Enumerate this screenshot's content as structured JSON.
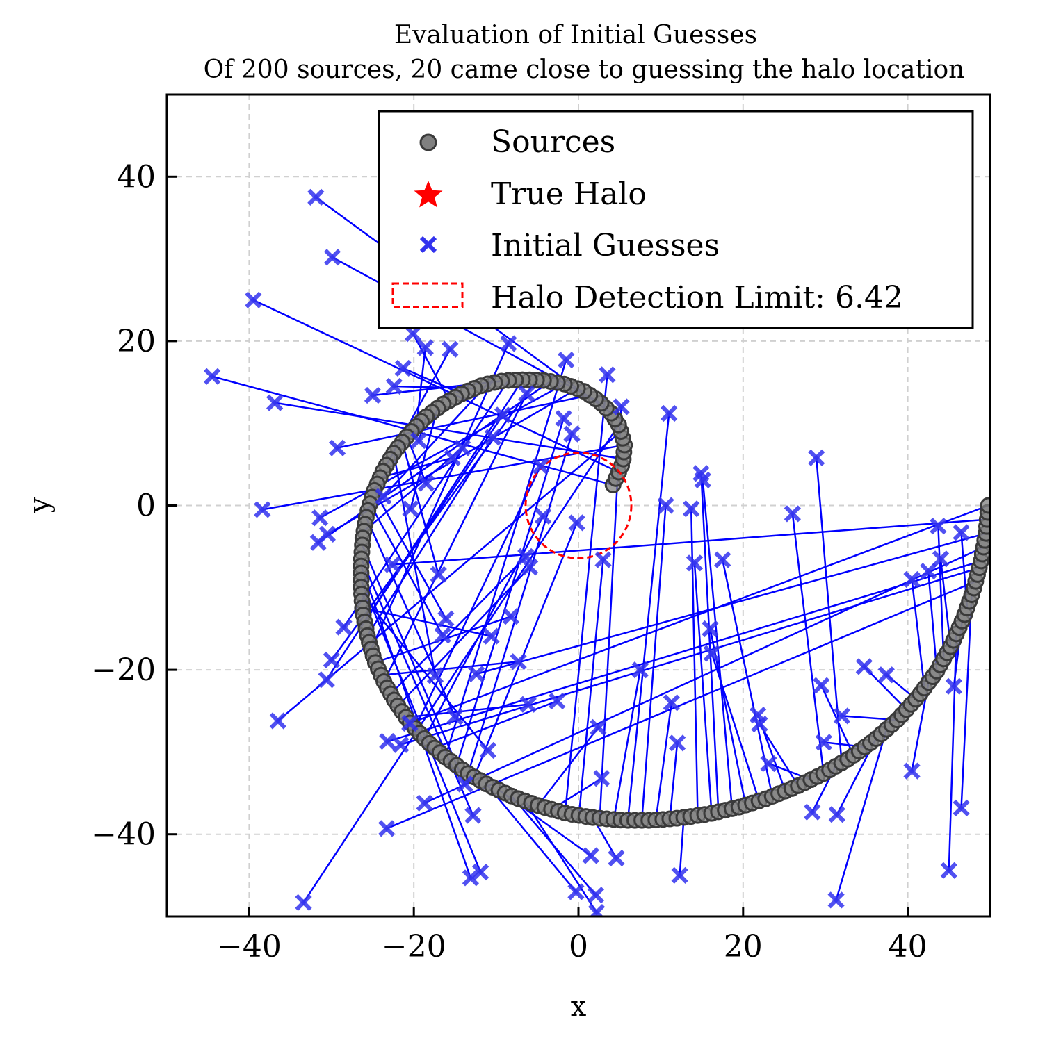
{
  "chart_data": {
    "type": "scatter",
    "title": "Evaluation of Initial Guesses",
    "subtitle": "Of 200 sources, 20 came close to guessing the halo location",
    "xlabel": "x",
    "ylabel": "y",
    "xlim": [
      -50,
      50
    ],
    "ylim": [
      -50,
      50
    ],
    "xticks": [
      -40,
      -20,
      0,
      20,
      40
    ],
    "yticks": [
      -40,
      -20,
      0,
      20,
      40
    ],
    "xtick_labels": [
      "−40",
      "−20",
      "0",
      "20",
      "40"
    ],
    "ytick_labels": [
      "−40",
      "−20",
      "0",
      "20",
      "40"
    ],
    "grid": true,
    "legend_placement": "upper right",
    "colors": {
      "sources_fill": "#808080",
      "sources_edge": "#3a3a3a",
      "true_halo": "#ff0000",
      "guess": "#3333ee",
      "line": "#0000ff",
      "detection_circle": "#ff0000",
      "grid": "#d0d0d0"
    },
    "legend": [
      {
        "label": "Sources",
        "marker": "circle"
      },
      {
        "label": "True Halo",
        "marker": "star"
      },
      {
        "label": "Initial Guesses",
        "marker": "x"
      },
      {
        "label": "Halo Detection Limit: 6.42",
        "marker": "dashed-rect"
      }
    ],
    "true_halo": {
      "x": 0,
      "y": 0
    },
    "detection_limit": {
      "radius": 6.42,
      "center": [
        0,
        0
      ]
    },
    "source_spiral": {
      "description_points": 200,
      "points": [
        [
          4.2,
          2.5
        ],
        [
          5.4,
          5.2
        ],
        [
          5.6,
          7.4
        ],
        [
          5.0,
          9.6
        ],
        [
          4.0,
          11.2
        ],
        [
          2.5,
          12.7
        ],
        [
          0.5,
          14.0
        ],
        [
          -1.8,
          14.8
        ],
        [
          -4.0,
          15.2
        ],
        [
          -6.5,
          15.3
        ],
        [
          -9.0,
          15.2
        ],
        [
          -11.5,
          14.7
        ],
        [
          -14.0,
          13.7
        ],
        [
          -16.5,
          12.3
        ],
        [
          -18.5,
          10.8
        ],
        [
          -20.5,
          8.8
        ],
        [
          -22.3,
          6.6
        ],
        [
          -23.7,
          4.3
        ],
        [
          -24.8,
          1.8
        ],
        [
          -25.7,
          -1.0
        ],
        [
          -26.2,
          -4.0
        ],
        [
          -26.4,
          -7.0
        ],
        [
          -26.4,
          -10.0
        ],
        [
          -26.2,
          -13.0
        ],
        [
          -25.6,
          -16.0
        ],
        [
          -24.8,
          -18.8
        ],
        [
          -23.6,
          -21.5
        ],
        [
          -22.2,
          -24.0
        ],
        [
          -20.5,
          -26.4
        ],
        [
          -18.5,
          -28.6
        ],
        [
          -16.2,
          -30.6
        ],
        [
          -13.6,
          -32.5
        ],
        [
          -10.8,
          -34.1
        ],
        [
          -7.8,
          -35.5
        ],
        [
          -4.6,
          -36.6
        ],
        [
          -1.3,
          -37.5
        ],
        [
          2.0,
          -38.0
        ],
        [
          5.5,
          -38.3
        ],
        [
          9.0,
          -38.3
        ],
        [
          12.5,
          -38.0
        ],
        [
          16.0,
          -37.5
        ],
        [
          19.5,
          -36.7
        ],
        [
          23.0,
          -35.6
        ],
        [
          26.5,
          -34.2
        ],
        [
          29.8,
          -32.6
        ],
        [
          33.0,
          -30.7
        ],
        [
          36.0,
          -28.5
        ],
        [
          38.8,
          -26.0
        ],
        [
          41.3,
          -23.2
        ],
        [
          43.5,
          -20.2
        ],
        [
          45.3,
          -17.0
        ],
        [
          46.8,
          -13.6
        ],
        [
          48.0,
          -10.2
        ],
        [
          48.9,
          -6.8
        ],
        [
          49.5,
          -3.4
        ],
        [
          49.8,
          0.0
        ]
      ]
    },
    "initial_guesses": [
      [
        -44.5,
        15.7
      ],
      [
        -39.5,
        25.0
      ],
      [
        -36.9,
        12.5
      ],
      [
        -38.4,
        -0.5
      ],
      [
        -36.5,
        -26.2
      ],
      [
        -33.4,
        -48.3
      ],
      [
        -31.9,
        37.5
      ],
      [
        -29.9,
        30.2
      ],
      [
        -29.3,
        7.0
      ],
      [
        -30.5,
        -3.5
      ],
      [
        -31.4,
        -1.5
      ],
      [
        -31.6,
        -4.5
      ],
      [
        -30.0,
        -18.8
      ],
      [
        -30.6,
        -21.2
      ],
      [
        -28.5,
        -14.8
      ],
      [
        -25.0,
        13.4
      ],
      [
        -23.7,
        1.1
      ],
      [
        -22.4,
        14.5
      ],
      [
        -21.3,
        16.7
      ],
      [
        -20.1,
        20.9
      ],
      [
        -20.4,
        -0.4
      ],
      [
        -19.4,
        7.9
      ],
      [
        -18.6,
        19.2
      ],
      [
        -18.5,
        2.7
      ],
      [
        -17.0,
        -8.4
      ],
      [
        -17.4,
        -20.7
      ],
      [
        -15.6,
        19.0
      ],
      [
        -15.3,
        5.8
      ],
      [
        -16.1,
        -13.8
      ],
      [
        -16.5,
        -15.8
      ],
      [
        -15.0,
        -25.7
      ],
      [
        -14.1,
        7.0
      ],
      [
        -13.8,
        -33.9
      ],
      [
        -12.8,
        -37.7
      ],
      [
        -13.1,
        -45.3
      ],
      [
        -11.9,
        -44.6
      ],
      [
        -11.0,
        -29.8
      ],
      [
        -10.6,
        -15.9
      ],
      [
        -9.2,
        11.0
      ],
      [
        -10.4,
        8.3
      ],
      [
        -8.5,
        19.7
      ],
      [
        -8.2,
        -13.5
      ],
      [
        -7.3,
        -19.0
      ],
      [
        -6.3,
        13.6
      ],
      [
        -6.4,
        -6.2
      ],
      [
        -5.9,
        -7.5
      ],
      [
        -6.1,
        -24.2
      ],
      [
        -4.6,
        4.8
      ],
      [
        -4.3,
        -1.3
      ],
      [
        -2.6,
        -23.8
      ],
      [
        -1.5,
        17.7
      ],
      [
        -1.8,
        10.6
      ],
      [
        -0.8,
        8.7
      ],
      [
        -0.2,
        -2.1
      ],
      [
        -0.3,
        -47.0
      ],
      [
        1.5,
        -42.6
      ],
      [
        2.1,
        -47.4
      ],
      [
        2.2,
        -49.5
      ],
      [
        2.4,
        -27.0
      ],
      [
        2.8,
        -33.2
      ],
      [
        3.5,
        15.9
      ],
      [
        3.0,
        -6.6
      ],
      [
        4.6,
        -42.9
      ],
      [
        5.2,
        12.0
      ],
      [
        7.5,
        -20.0
      ],
      [
        11.0,
        11.2
      ],
      [
        10.6,
        0.0
      ],
      [
        11.3,
        -24.0
      ],
      [
        12.0,
        -28.9
      ],
      [
        12.3,
        -45.0
      ],
      [
        13.7,
        -0.4
      ],
      [
        14.1,
        -7.0
      ],
      [
        14.9,
        3.9
      ],
      [
        15.1,
        3.1
      ],
      [
        16.0,
        -15.0
      ],
      [
        16.2,
        -18.0
      ],
      [
        17.5,
        -6.6
      ],
      [
        21.8,
        -25.5
      ],
      [
        22.0,
        -26.6
      ],
      [
        23.1,
        -31.4
      ],
      [
        26.0,
        -1.0
      ],
      [
        28.4,
        -37.3
      ],
      [
        28.9,
        5.8
      ],
      [
        29.5,
        -21.9
      ],
      [
        29.8,
        -28.8
      ],
      [
        31.4,
        -37.6
      ],
      [
        31.3,
        -48.0
      ],
      [
        32.0,
        -25.6
      ],
      [
        34.7,
        -19.6
      ],
      [
        37.4,
        -20.6
      ],
      [
        40.5,
        -9.0
      ],
      [
        40.5,
        -32.3
      ],
      [
        42.5,
        -8.0
      ],
      [
        43.7,
        -2.5
      ],
      [
        44.0,
        -6.5
      ],
      [
        45.0,
        -44.4
      ],
      [
        45.6,
        -22.0
      ],
      [
        46.5,
        -3.3
      ],
      [
        46.5,
        -36.8
      ],
      [
        -23.3,
        -39.3
      ],
      [
        -21.6,
        -29.1
      ],
      [
        -23.2,
        -28.7
      ],
      [
        -18.7,
        -36.2
      ],
      [
        -12.4,
        -20.5
      ],
      [
        -22.6,
        -7.2
      ],
      [
        -20.5,
        -26.5
      ]
    ]
  }
}
